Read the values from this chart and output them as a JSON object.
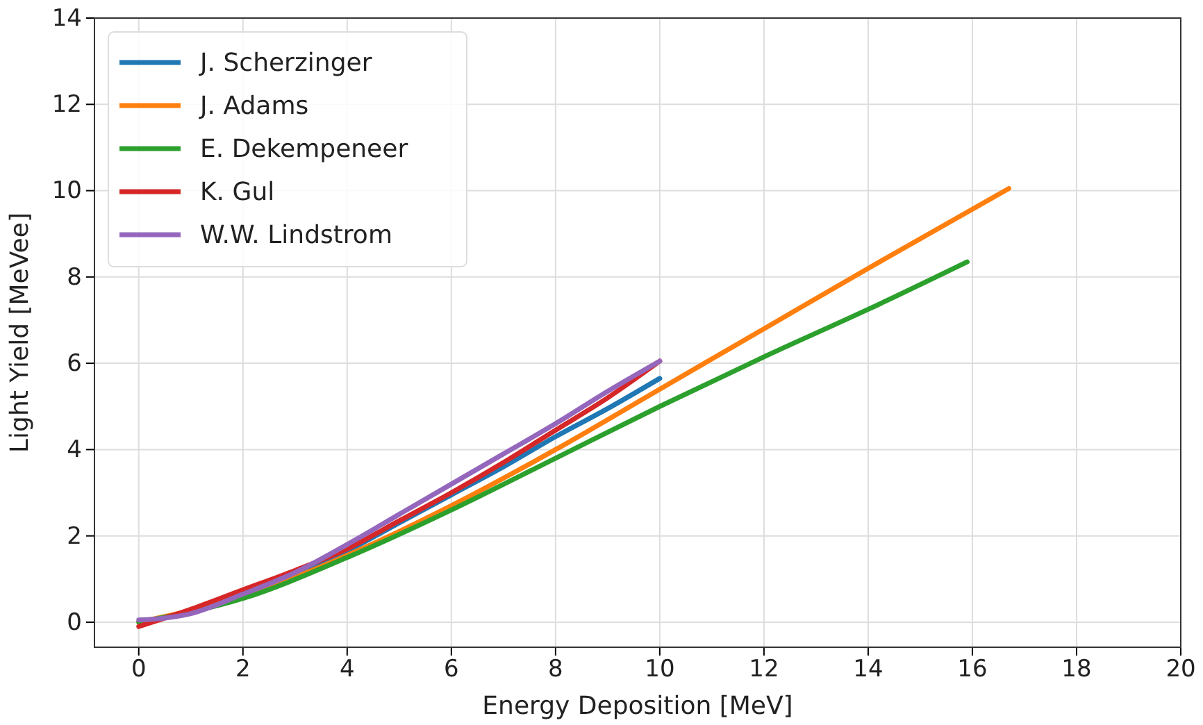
{
  "chart_data": {
    "type": "line",
    "xlabel": "Energy Deposition [MeV]",
    "ylabel": "Light Yield [MeVee]",
    "xlim": [
      -0.85,
      20
    ],
    "ylim": [
      -0.58,
      14
    ],
    "xticks": [
      0,
      2,
      4,
      6,
      8,
      10,
      12,
      14,
      16,
      18,
      20
    ],
    "yticks": [
      0,
      2,
      4,
      6,
      8,
      10,
      12,
      14
    ],
    "grid": true,
    "legend": "top left",
    "series": [
      {
        "name": "J. Scherzinger",
        "color": "#1f77b4",
        "x": [
          2,
          3,
          4,
          5,
          6,
          7,
          8,
          9,
          10
        ],
        "values": [
          0.65,
          1.1,
          1.65,
          2.3,
          2.95,
          3.6,
          4.3,
          4.95,
          5.65
        ]
      },
      {
        "name": "J. Adams",
        "color": "#ff7f0e",
        "x": [
          0,
          2,
          4,
          6,
          8,
          10,
          12,
          14,
          16.7
        ],
        "values": [
          0,
          0.6,
          1.55,
          2.7,
          4.0,
          5.4,
          6.8,
          8.2,
          10.05
        ]
      },
      {
        "name": "E. Dekempeneer",
        "color": "#2ca02c",
        "x": [
          0,
          2,
          4,
          6,
          8,
          10,
          12,
          14,
          15.9
        ],
        "values": [
          0,
          0.55,
          1.5,
          2.6,
          3.8,
          5.0,
          6.15,
          7.25,
          8.35
        ]
      },
      {
        "name": "K. Gul",
        "color": "#d62728",
        "x": [
          0,
          1,
          2,
          3,
          4,
          5,
          6,
          7,
          8,
          9,
          10
        ],
        "values": [
          -0.1,
          0.3,
          0.75,
          1.2,
          1.7,
          2.35,
          3.0,
          3.7,
          4.45,
          5.2,
          6.05
        ]
      },
      {
        "name": "W.W. Lindstrom",
        "color": "#9467bd",
        "x": [
          0,
          1,
          2,
          3,
          4,
          5,
          6,
          7,
          8,
          9,
          10
        ],
        "values": [
          0.05,
          0.2,
          0.65,
          1.15,
          1.8,
          2.5,
          3.2,
          3.9,
          4.6,
          5.35,
          6.05
        ]
      }
    ]
  }
}
